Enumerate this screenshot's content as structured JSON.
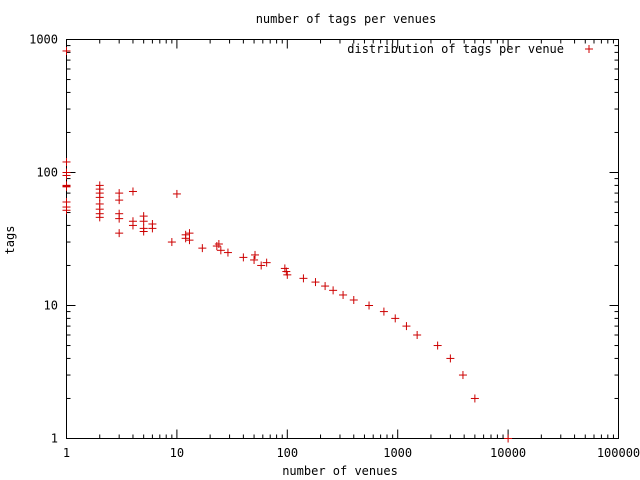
{
  "chart_data": {
    "type": "scatter",
    "title": "number of tags per venues",
    "xlabel": "number of venues",
    "ylabel": "tags",
    "xscale": "log",
    "yscale": "log",
    "xlim": [
      1,
      100000
    ],
    "ylim": [
      1,
      1000
    ],
    "xticks": [
      1,
      10,
      100,
      1000,
      10000,
      100000
    ],
    "xtick_labels": [
      "1",
      "10",
      "100",
      "1000",
      "10000",
      "100000"
    ],
    "yticks": [
      1,
      10,
      100,
      1000
    ],
    "ytick_labels": [
      "1",
      "10",
      "100",
      "1000"
    ],
    "grid": false,
    "legend_position": "top-right",
    "series": [
      {
        "name": "distribution of tags per venue",
        "color": "#cc0000",
        "marker": "plus",
        "points": [
          [
            1,
            820
          ],
          [
            1,
            120
          ],
          [
            1,
            100
          ],
          [
            1,
            95
          ],
          [
            1,
            80
          ],
          [
            1,
            79
          ],
          [
            1,
            78
          ],
          [
            1,
            60
          ],
          [
            1,
            55
          ],
          [
            1,
            52
          ],
          [
            2,
            80
          ],
          [
            2,
            75
          ],
          [
            2,
            70
          ],
          [
            2,
            65
          ],
          [
            2,
            58
          ],
          [
            2,
            53
          ],
          [
            2,
            49
          ],
          [
            2,
            46
          ],
          [
            3,
            70
          ],
          [
            3,
            62
          ],
          [
            3,
            49
          ],
          [
            3,
            45
          ],
          [
            3,
            35
          ],
          [
            4,
            72
          ],
          [
            4,
            43
          ],
          [
            4,
            40
          ],
          [
            5,
            47
          ],
          [
            5,
            43
          ],
          [
            5,
            38
          ],
          [
            5,
            36
          ],
          [
            6,
            41
          ],
          [
            6,
            38
          ],
          [
            9,
            30
          ],
          [
            10,
            69
          ],
          [
            12,
            34
          ],
          [
            12,
            32
          ],
          [
            13,
            35
          ],
          [
            13,
            31
          ],
          [
            17,
            27
          ],
          [
            23,
            28
          ],
          [
            24,
            29
          ],
          [
            25,
            26
          ],
          [
            29,
            25
          ],
          [
            40,
            23
          ],
          [
            50,
            22
          ],
          [
            51,
            24
          ],
          [
            58,
            20
          ],
          [
            65,
            21
          ],
          [
            95,
            19
          ],
          [
            98,
            18
          ],
          [
            100,
            17
          ],
          [
            140,
            16
          ],
          [
            180,
            15
          ],
          [
            220,
            14
          ],
          [
            260,
            13
          ],
          [
            320,
            12
          ],
          [
            400,
            11
          ],
          [
            550,
            10
          ],
          [
            750,
            9
          ],
          [
            950,
            8
          ],
          [
            1200,
            7
          ],
          [
            1500,
            6
          ],
          [
            2300,
            5
          ],
          [
            3000,
            4
          ],
          [
            3900,
            3
          ],
          [
            5000,
            2
          ],
          [
            10000,
            1
          ]
        ]
      }
    ]
  }
}
